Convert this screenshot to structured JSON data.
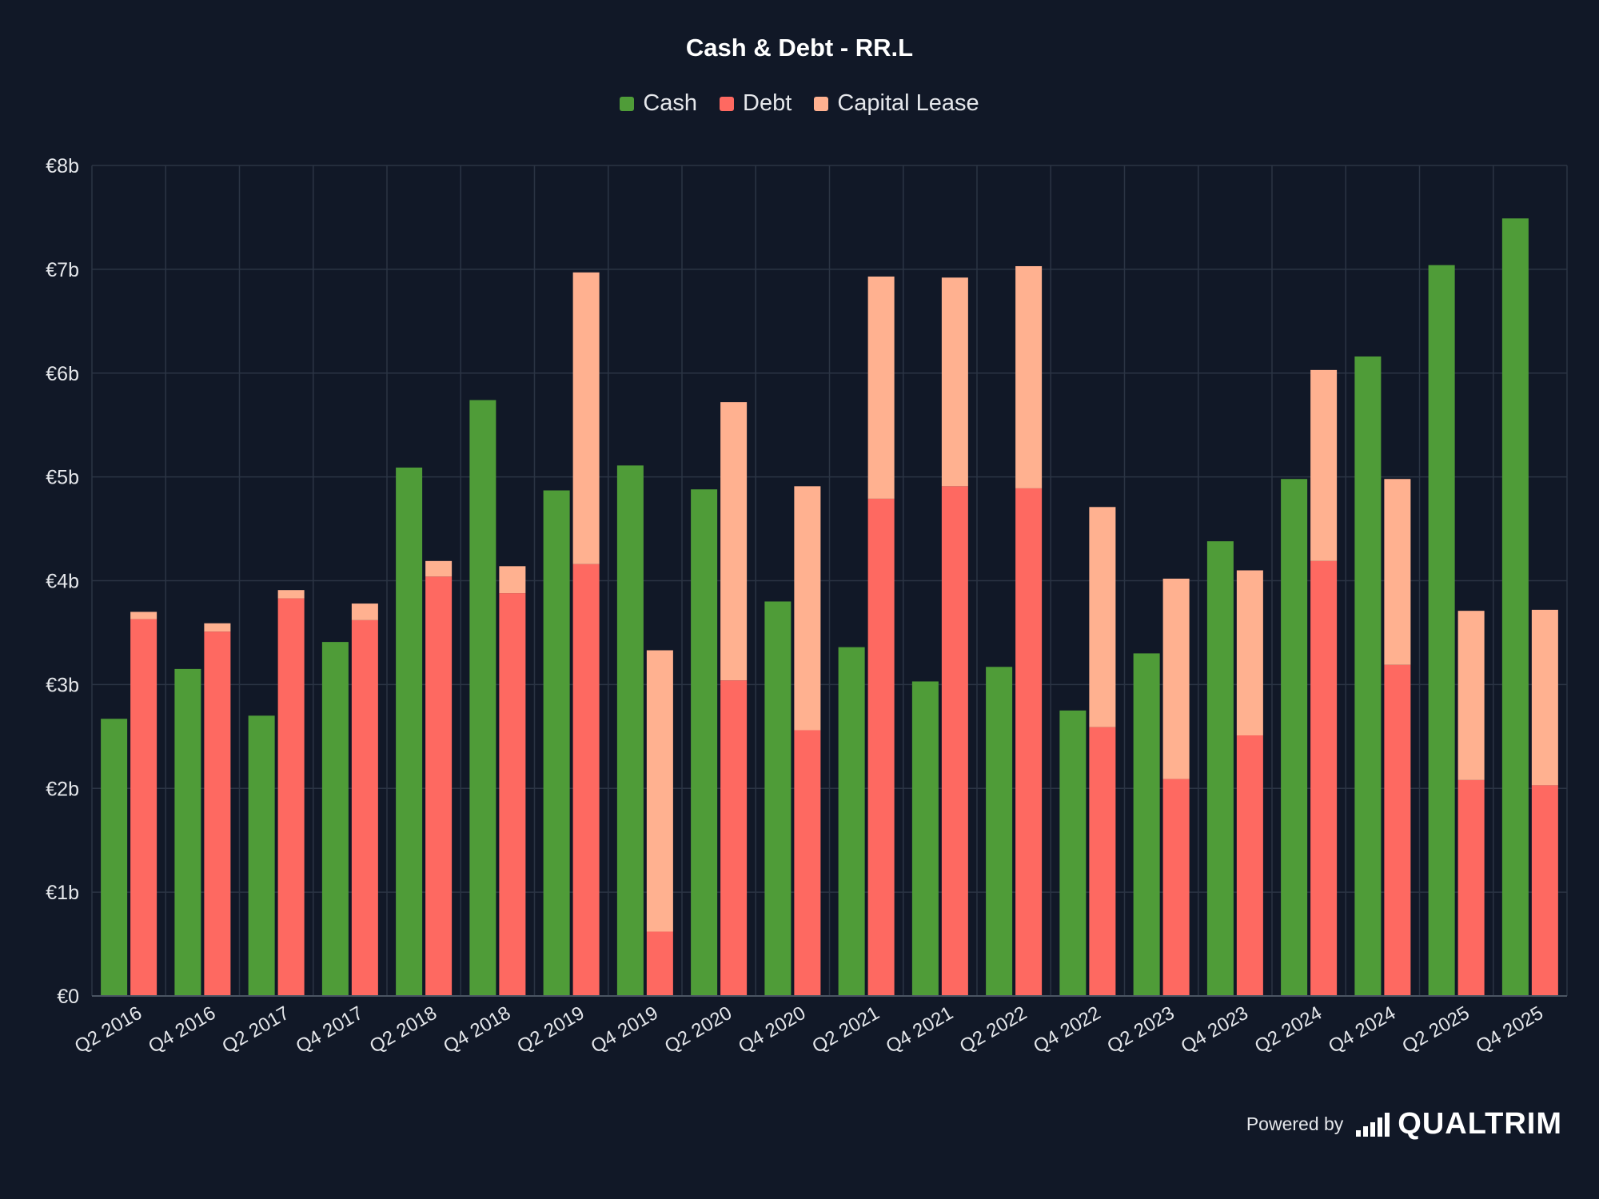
{
  "chart_data": {
    "type": "bar",
    "stacked": true,
    "title": "Cash & Debt - RR.L",
    "xlabel": "",
    "ylabel": "",
    "categories": [
      "Q2 2016",
      "Q4 2016",
      "Q2 2017",
      "Q4 2017",
      "Q2 2018",
      "Q4 2018",
      "Q2 2019",
      "Q4 2019",
      "Q2 2020",
      "Q4 2020",
      "Q2 2021",
      "Q4 2021",
      "Q2 2022",
      "Q4 2022",
      "Q2 2023",
      "Q4 2023",
      "Q2 2024",
      "Q4 2024",
      "Q2 2025",
      "Q4 2025"
    ],
    "series": [
      {
        "name": "Cash",
        "stack": "cash",
        "color": "#4f9c38",
        "values": [
          2.67,
          3.15,
          2.7,
          3.41,
          5.09,
          5.74,
          4.87,
          5.11,
          4.88,
          3.8,
          3.36,
          3.03,
          3.17,
          2.75,
          3.3,
          4.38,
          4.98,
          6.16,
          7.04,
          7.49
        ]
      },
      {
        "name": "Debt",
        "stack": "debt",
        "color": "#fe6961",
        "values": [
          3.63,
          3.51,
          3.83,
          3.62,
          4.04,
          3.88,
          4.16,
          0.62,
          3.04,
          2.56,
          4.79,
          4.91,
          4.89,
          2.59,
          2.09,
          2.51,
          4.19,
          3.19,
          2.08,
          2.03
        ]
      },
      {
        "name": "Capital Lease",
        "stack": "debt",
        "color": "#ffb190",
        "values": [
          0.07,
          0.08,
          0.08,
          0.16,
          0.15,
          0.26,
          2.81,
          2.71,
          2.68,
          2.35,
          2.14,
          2.01,
          2.14,
          2.12,
          1.93,
          1.59,
          1.84,
          1.79,
          1.63,
          1.69
        ]
      }
    ],
    "y_ticks": [
      "€0",
      "€1b",
      "€2b",
      "€3b",
      "€4b",
      "€5b",
      "€6b",
      "€7b",
      "€8b"
    ],
    "ylim": [
      0,
      8
    ],
    "y_unit": "€ billions",
    "grid": true,
    "legend_position": "top-center"
  },
  "branding": {
    "powered_by": "Powered by",
    "name": "QUALTRIM"
  },
  "colors": {
    "background": "#111827",
    "grid": "#2b3444",
    "text": "#e5e7eb"
  }
}
